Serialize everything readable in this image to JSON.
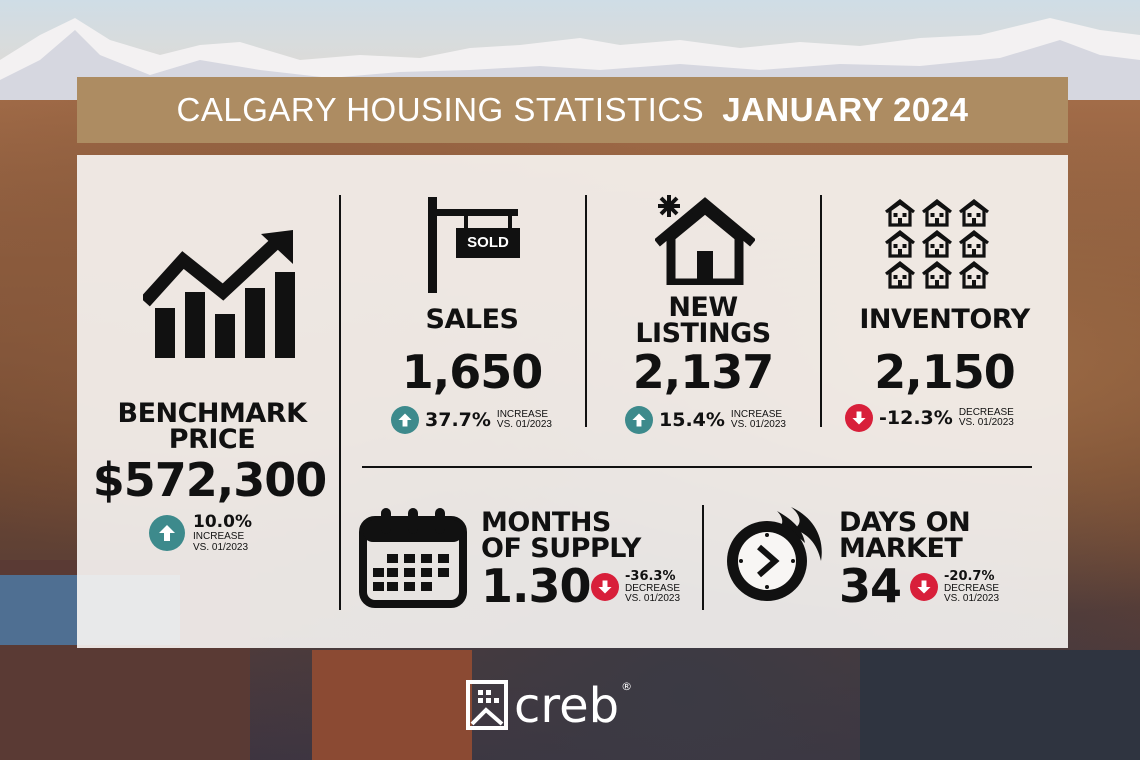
{
  "header": {
    "title_part1": "CALGARY HOUSING STATISTICS",
    "title_part2": "JANUARY 2024"
  },
  "colors": {
    "header_bg": "#ad8c62",
    "increase": "#3d8a8c",
    "decrease": "#d81f3a"
  },
  "benchmark": {
    "icon": "bar-chart-trend-up-icon",
    "label_line1": "BENCHMARK",
    "label_line2": "PRICE",
    "value": "$572,300",
    "change": "10.0%",
    "direction": "increase",
    "note_line1": "INCREASE",
    "note_line2": "VS. 01/2023"
  },
  "sales": {
    "icon": "sold-sign-icon",
    "sign_text": "SOLD",
    "label": "SALES",
    "value": "1,650",
    "change": "37.7%",
    "direction": "increase",
    "note_line1": "INCREASE",
    "note_line2": "VS. 01/2023"
  },
  "new_listings": {
    "icon": "new-house-icon",
    "label_line1": "NEW",
    "label_line2": "LISTINGS",
    "value": "2,137",
    "change": "15.4%",
    "direction": "increase",
    "note_line1": "INCREASE",
    "note_line2": "VS. 01/2023"
  },
  "inventory": {
    "icon": "houses-grid-icon",
    "label": "INVENTORY",
    "value": "2,150",
    "change": "-12.3%",
    "direction": "decrease",
    "note_line1": "DECREASE",
    "note_line2": "VS. 01/2023"
  },
  "months_supply": {
    "icon": "calendar-icon",
    "label_line1": "MONTHS",
    "label_line2": "OF SUPPLY",
    "value": "1.30",
    "change": "-36.3%",
    "direction": "decrease",
    "note_line1": "DECREASE",
    "note_line2": "VS. 01/2023"
  },
  "days_on_market": {
    "icon": "fast-clock-icon",
    "label_line1": "DAYS ON",
    "label_line2": "MARKET",
    "value": "34",
    "change": "-20.7%",
    "direction": "decrease",
    "note_line1": "DECREASE",
    "note_line2": "VS. 01/2023"
  },
  "logo": {
    "icon": "creb-logo-icon",
    "text": "creb",
    "reg": "®"
  }
}
